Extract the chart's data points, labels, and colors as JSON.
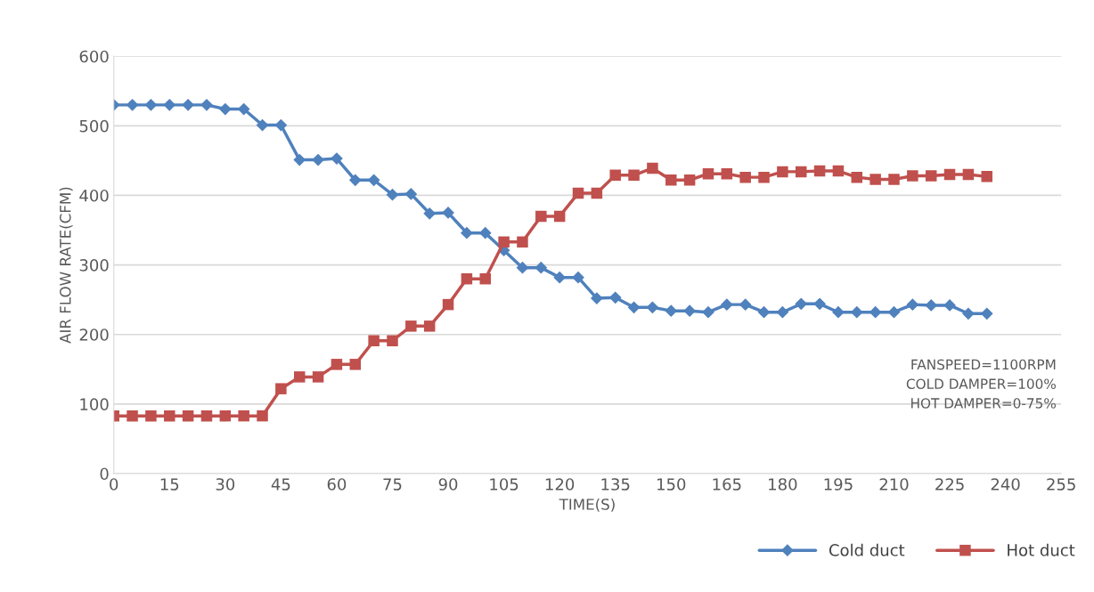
{
  "chart_data": {
    "type": "line",
    "xlabel": "TIME(S)",
    "ylabel": "AIR FLOW RATE(CFM)",
    "x": [
      0,
      5,
      10,
      15,
      20,
      25,
      30,
      35,
      40,
      45,
      50,
      55,
      60,
      65,
      70,
      75,
      80,
      85,
      90,
      95,
      100,
      105,
      110,
      115,
      120,
      125,
      130,
      135,
      140,
      145,
      150,
      155,
      160,
      165,
      170,
      175,
      180,
      185,
      190,
      195,
      200,
      205,
      210,
      215,
      220,
      225,
      230,
      235
    ],
    "series": [
      {
        "name": "Cold duct",
        "color": "#4f81bd",
        "marker": "diamond",
        "values": [
          530,
          530,
          530,
          530,
          530,
          530,
          524,
          524,
          501,
          501,
          451,
          451,
          453,
          422,
          422,
          401,
          402,
          374,
          375,
          346,
          346,
          321,
          296,
          296,
          282,
          282,
          252,
          253,
          239,
          239,
          234,
          234,
          232,
          243,
          243,
          232,
          232,
          244,
          244,
          232,
          232,
          232,
          232,
          243,
          242,
          242,
          230,
          230
        ]
      },
      {
        "name": "Hot duct",
        "color": "#c0504d",
        "marker": "square",
        "values": [
          83,
          83,
          83,
          83,
          83,
          83,
          83,
          83,
          83,
          122,
          139,
          139,
          157,
          157,
          191,
          191,
          212,
          212,
          243,
          280,
          280,
          333,
          333,
          370,
          370,
          403,
          403,
          429,
          429,
          439,
          422,
          422,
          431,
          431,
          426,
          426,
          434,
          434,
          435,
          435,
          426,
          423,
          423,
          428,
          428,
          430,
          430,
          427
        ]
      }
    ],
    "xlim": [
      0,
      255
    ],
    "xticks": [
      0,
      15,
      30,
      45,
      60,
      75,
      90,
      105,
      120,
      135,
      150,
      165,
      180,
      195,
      210,
      225,
      240,
      255
    ],
    "ylim": [
      0,
      600
    ],
    "yticks": [
      0,
      100,
      200,
      300,
      400,
      500,
      600
    ],
    "grid": "y",
    "legend": "bottom right",
    "line_style": "solid",
    "annotations": [
      "FANSPEED=1100RPM\nCOLD DAMPER=100%\nHOT DAMPER=0-75%"
    ]
  }
}
